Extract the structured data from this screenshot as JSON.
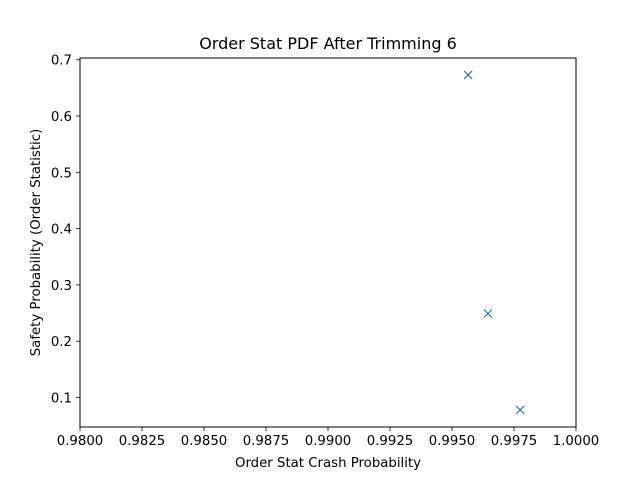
{
  "chart_data": {
    "type": "scatter",
    "title": "Order Stat PDF After Trimming 6",
    "xlabel": "Order Stat Crash Probability",
    "ylabel": "Safety Probability (Order Statistic)",
    "xlim": [
      0.98,
      1.0
    ],
    "ylim": [
      0.0476,
      0.7031
    ],
    "xticks": [
      0.98,
      0.9825,
      0.985,
      0.9875,
      0.99,
      0.9925,
      0.995,
      0.9975,
      1.0
    ],
    "xtick_labels": [
      "0.9800",
      "0.9825",
      "0.9850",
      "0.9875",
      "0.9900",
      "0.9925",
      "0.9950",
      "0.9975",
      "1.0000"
    ],
    "yticks": [
      0.1,
      0.2,
      0.3,
      0.4,
      0.5,
      0.6,
      0.7
    ],
    "ytick_labels": [
      "0.1",
      "0.2",
      "0.3",
      "0.4",
      "0.5",
      "0.6",
      "0.7"
    ],
    "marker": "x",
    "color": "#1f77b4",
    "grid": false,
    "series": [
      {
        "x": [
          0.99565,
          0.99645,
          0.99775
        ],
        "y": [
          0.673,
          0.249,
          0.078
        ]
      }
    ]
  }
}
